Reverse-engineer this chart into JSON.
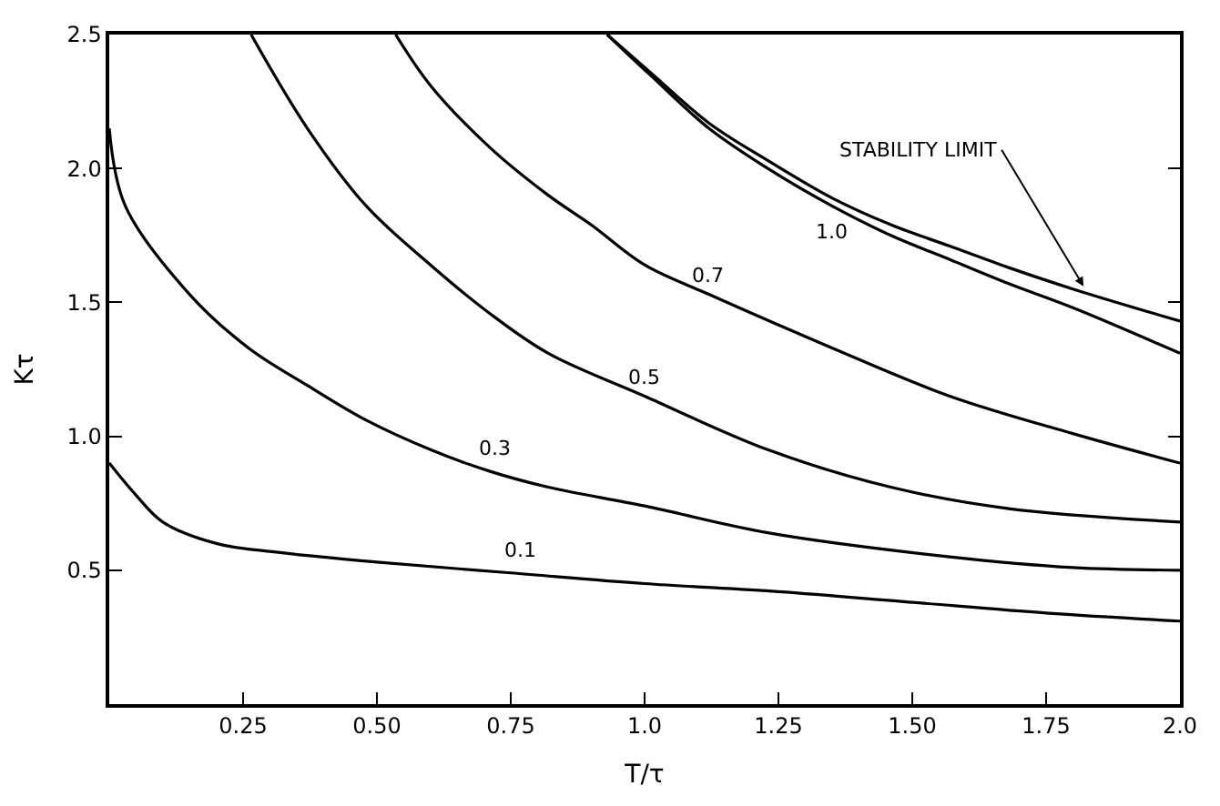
{
  "chart_data": {
    "type": "line",
    "xlabel": "T/τ",
    "ylabel": "Kτ",
    "xlim": [
      0,
      2.0
    ],
    "ylim": [
      0,
      2.5
    ],
    "xticks": [
      {
        "value": 0.25,
        "label": "0.25"
      },
      {
        "value": 0.5,
        "label": "0.50"
      },
      {
        "value": 0.75,
        "label": "0.75"
      },
      {
        "value": 1.0,
        "label": "1.0"
      },
      {
        "value": 1.25,
        "label": "1.25"
      },
      {
        "value": 1.5,
        "label": "1.50"
      },
      {
        "value": 1.75,
        "label": "1.75"
      },
      {
        "value": 2.0,
        "label": "2.0"
      }
    ],
    "yticks": [
      {
        "value": 0.5,
        "label": "0.5"
      },
      {
        "value": 1.0,
        "label": "1.0"
      },
      {
        "value": 1.5,
        "label": "1.5"
      },
      {
        "value": 2.0,
        "label": "2.0"
      },
      {
        "value": 2.5,
        "label": "2.5"
      }
    ],
    "marker": "none",
    "line_style": "solid",
    "series": [
      {
        "color": "#000000",
        "x": [
          0,
          0.05,
          0.1,
          0.2,
          0.3,
          0.5,
          0.75,
          1.0,
          1.25,
          1.5,
          1.75,
          2.0
        ],
        "values": [
          0.9,
          0.78,
          0.68,
          0.6,
          0.57,
          0.53,
          0.49,
          0.45,
          0.42,
          0.38,
          0.34,
          0.31
        ]
      },
      {
        "color": "#000000",
        "x": [
          0,
          0.03,
          0.15,
          0.26,
          0.37,
          0.48,
          0.6,
          0.71,
          0.82,
          1.0,
          1.23,
          1.57,
          1.8,
          2.0
        ],
        "values": [
          2.15,
          1.86,
          1.53,
          1.33,
          1.19,
          1.06,
          0.95,
          0.87,
          0.81,
          0.74,
          0.64,
          0.55,
          0.51,
          0.5
        ]
      },
      {
        "color": "#000000",
        "x": [
          0.265,
          0.37,
          0.48,
          0.6,
          0.71,
          0.82,
          1.0,
          1.23,
          1.46,
          1.68,
          2.0
        ],
        "values": [
          2.5,
          2.15,
          1.86,
          1.64,
          1.46,
          1.31,
          1.15,
          0.95,
          0.81,
          0.73,
          0.68
        ]
      },
      {
        "color": "#000000",
        "x": [
          0.535,
          0.6,
          0.71,
          0.82,
          0.9,
          1.0,
          1.12,
          1.35,
          1.57,
          1.8,
          2.0
        ],
        "values": [
          2.5,
          2.31,
          2.08,
          1.9,
          1.79,
          1.64,
          1.53,
          1.33,
          1.15,
          1.01,
          0.9
        ]
      },
      {
        "color": "#000000",
        "x": [
          0.93,
          1.01,
          1.12,
          1.23,
          1.35,
          1.46,
          1.57,
          1.68,
          1.8,
          2.0
        ],
        "values": [
          2.5,
          2.35,
          2.15,
          2.0,
          1.86,
          1.75,
          1.66,
          1.57,
          1.48,
          1.31
        ]
      },
      {
        "color": "#000000",
        "x": [
          0.93,
          1.01,
          1.12,
          1.23,
          1.35,
          1.46,
          1.57,
          1.68,
          1.8,
          2.0
        ],
        "values": [
          2.5,
          2.36,
          2.17,
          2.03,
          1.89,
          1.79,
          1.71,
          1.63,
          1.55,
          1.43
        ]
      }
    ],
    "annotations": [
      {
        "text": "0.1",
        "x": 0.77,
        "y": 0.49
      },
      {
        "text": "0.3",
        "x": 0.72,
        "y": 0.87
      },
      {
        "text": "0.5",
        "x": 1.0,
        "y": 1.15
      },
      {
        "text": "0.7",
        "x": 1.12,
        "y": 1.53
      },
      {
        "text": "1.0",
        "x": 1.35,
        "y": 1.86
      },
      {
        "text": "STABILITY LIMIT",
        "x": 1.82,
        "y": 1.56
      }
    ]
  }
}
